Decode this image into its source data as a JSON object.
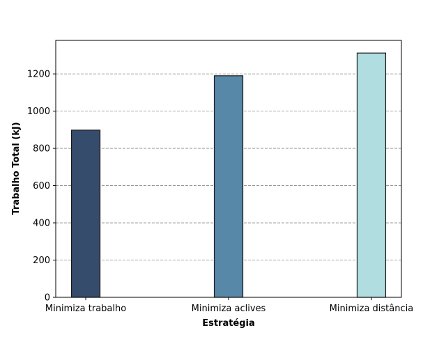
{
  "chart_data": {
    "type": "bar",
    "title": "",
    "xlabel": "Estratégia",
    "ylabel": "Trabalho Total (kJ)",
    "categories": [
      "Minimiza trabalho",
      "Minimiza aclives",
      "Minimiza distância"
    ],
    "values": [
      898,
      1190,
      1312
    ],
    "bar_colors": [
      "#364c6c",
      "#5888a8",
      "#b0dde0"
    ],
    "bar_edge_color": "#1a1a1a",
    "ylim": [
      0,
      1380
    ],
    "yticks": [
      0,
      200,
      400,
      600,
      800,
      1000,
      1200
    ],
    "ytick_labels": [
      "0",
      "200",
      "400",
      "600",
      "800",
      "1000",
      "1200"
    ],
    "grid": {
      "axis": "y",
      "style": "dashed",
      "color": "#888888"
    },
    "legend": null
  }
}
